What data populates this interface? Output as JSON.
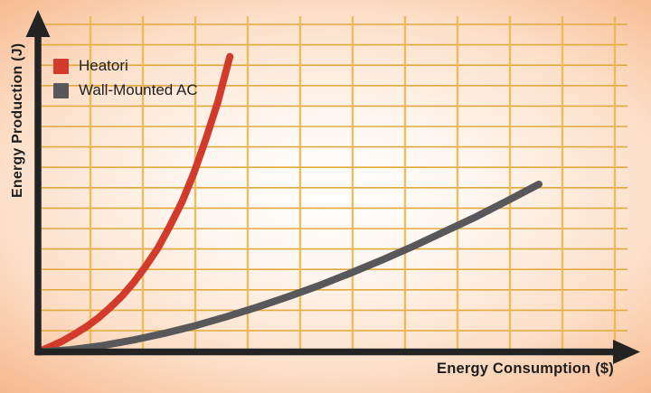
{
  "chart_data": {
    "type": "line",
    "title": "",
    "xlabel": "Energy Consumption ($)",
    "ylabel": "Energy Production (J)",
    "xlim": [
      0,
      10
    ],
    "ylim": [
      0,
      10
    ],
    "grid": true,
    "tick_labels": "none",
    "legend_position": "top-left",
    "series": [
      {
        "name": "Heatori",
        "color": "#d23b2b",
        "shape": "exponential-steep",
        "x": [
          0,
          0.2,
          0.41,
          0.61,
          0.82,
          1.02,
          1.22,
          1.43,
          1.63,
          1.83,
          2.04,
          2.24,
          2.45,
          2.65,
          2.85,
          3.06,
          3.26
        ],
        "y": [
          0,
          0.15,
          0.32,
          0.52,
          0.75,
          1.01,
          1.32,
          1.68,
          2.09,
          2.57,
          3.12,
          3.77,
          4.51,
          5.37,
          6.37,
          7.52,
          8.86
        ]
      },
      {
        "name": "Wall-Mounted AC",
        "color": "#58585a",
        "shape": "gentle-convex",
        "x": [
          0,
          0.53,
          1.06,
          1.6,
          2.13,
          2.66,
          3.19,
          3.72,
          4.26,
          4.79,
          5.32,
          5.85,
          6.38,
          6.91,
          7.45,
          7.98,
          8.51
        ],
        "y": [
          0,
          0.06,
          0.18,
          0.35,
          0.55,
          0.78,
          1.05,
          1.34,
          1.66,
          2.0,
          2.37,
          2.76,
          3.17,
          3.61,
          4.06,
          4.54,
          5.03
        ]
      }
    ]
  },
  "colors": {
    "grid_horizontal": "#e2a93c",
    "grid_vertical": "#e9b94f",
    "axis": "#232323",
    "label_text": "#1e1e1e",
    "background_center": "#ffffff",
    "background_edge": "#f5aa7b"
  }
}
